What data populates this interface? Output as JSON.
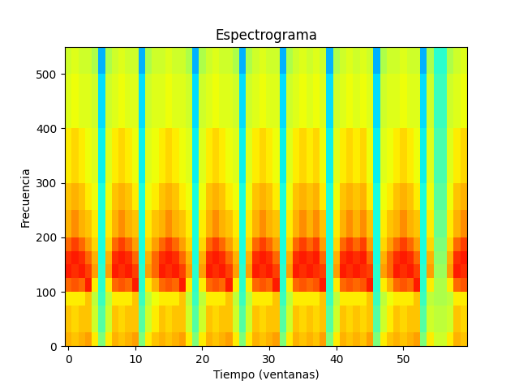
{
  "chart_data": {
    "type": "heatmap",
    "title": "Espectrograma",
    "x_label": "Tiempo (ventanas)",
    "y_label": "Frecuencia",
    "color": "jet",
    "clim": [
      0,
      100
    ],
    "xlim": [
      -0.5,
      59.5
    ],
    "ylim": [
      0,
      550
    ],
    "xticks": [
      0,
      10,
      20,
      30,
      40,
      50
    ],
    "yticks": [
      0,
      100,
      200,
      300,
      400,
      500
    ],
    "x_edges": [
      -0.5,
      0.5,
      1.5,
      2.5,
      3.5,
      4.5,
      5.5,
      6.5,
      7.5,
      8.5,
      9.5,
      10.5,
      11.5,
      12.5,
      13.5,
      14.5,
      15.5,
      16.5,
      17.5,
      18.5,
      19.5,
      20.5,
      21.5,
      22.5,
      23.5,
      24.5,
      25.5,
      26.5,
      27.5,
      28.5,
      29.5,
      30.5,
      31.5,
      32.5,
      33.5,
      34.5,
      35.5,
      36.5,
      37.5,
      38.5,
      39.5,
      40.5,
      41.5,
      42.5,
      43.5,
      44.5,
      45.5,
      46.5,
      47.5,
      48.5,
      49.5,
      50.5,
      51.5,
      52.5,
      53.5,
      54.5,
      55.5,
      56.5,
      57.5,
      58.5,
      59.5
    ],
    "y_edges": [
      0,
      25,
      75,
      100,
      125,
      150,
      175,
      200,
      250,
      300,
      400,
      500,
      550
    ],
    "cells_by_column": [
      [
        72,
        70,
        66,
        80,
        88,
        86,
        80,
        72,
        70,
        66,
        62,
        60
      ],
      [
        70,
        68,
        66,
        82,
        86,
        88,
        84,
        76,
        72,
        68,
        64,
        62
      ],
      [
        72,
        70,
        66,
        80,
        88,
        86,
        80,
        72,
        70,
        66,
        62,
        60
      ],
      [
        74,
        70,
        70,
        88,
        84,
        80,
        74,
        70,
        66,
        64,
        62,
        60
      ],
      [
        66,
        60,
        58,
        66,
        74,
        72,
        68,
        66,
        64,
        62,
        60,
        56
      ],
      [
        50,
        45,
        42,
        40,
        40,
        38,
        38,
        38,
        38,
        36,
        34,
        30
      ],
      [
        66,
        60,
        58,
        66,
        74,
        72,
        68,
        66,
        64,
        62,
        60,
        56
      ],
      [
        72,
        70,
        66,
        80,
        88,
        86,
        80,
        72,
        70,
        66,
        62,
        60
      ],
      [
        70,
        68,
        66,
        82,
        86,
        88,
        84,
        76,
        72,
        68,
        64,
        62
      ],
      [
        72,
        70,
        66,
        80,
        88,
        86,
        80,
        72,
        70,
        66,
        62,
        60
      ],
      [
        74,
        70,
        70,
        88,
        84,
        80,
        74,
        70,
        66,
        64,
        62,
        60
      ],
      [
        50,
        45,
        42,
        40,
        40,
        38,
        38,
        38,
        38,
        36,
        34,
        30
      ],
      [
        66,
        60,
        58,
        66,
        74,
        72,
        68,
        66,
        64,
        62,
        60,
        56
      ],
      [
        70,
        66,
        64,
        72,
        80,
        80,
        74,
        70,
        66,
        64,
        62,
        60
      ],
      [
        72,
        70,
        66,
        80,
        88,
        86,
        80,
        72,
        70,
        66,
        62,
        60
      ],
      [
        70,
        68,
        66,
        82,
        86,
        88,
        84,
        76,
        72,
        68,
        64,
        62
      ],
      [
        72,
        70,
        66,
        80,
        88,
        86,
        80,
        72,
        70,
        66,
        62,
        60
      ],
      [
        74,
        70,
        70,
        88,
        84,
        80,
        74,
        70,
        66,
        64,
        62,
        60
      ],
      [
        66,
        60,
        58,
        66,
        74,
        72,
        68,
        66,
        64,
        62,
        60,
        56
      ],
      [
        50,
        45,
        42,
        40,
        40,
        38,
        38,
        38,
        38,
        36,
        34,
        30
      ],
      [
        66,
        60,
        58,
        66,
        74,
        72,
        68,
        66,
        64,
        62,
        60,
        56
      ],
      [
        72,
        70,
        66,
        80,
        88,
        86,
        80,
        72,
        70,
        66,
        62,
        60
      ],
      [
        70,
        68,
        66,
        82,
        86,
        88,
        84,
        76,
        72,
        68,
        64,
        62
      ],
      [
        72,
        70,
        66,
        80,
        88,
        86,
        80,
        72,
        70,
        66,
        62,
        60
      ],
      [
        74,
        70,
        70,
        88,
        84,
        80,
        74,
        70,
        66,
        64,
        62,
        60
      ],
      [
        66,
        60,
        58,
        66,
        74,
        72,
        68,
        66,
        64,
        62,
        60,
        56
      ],
      [
        50,
        45,
        42,
        40,
        40,
        38,
        38,
        38,
        38,
        36,
        34,
        30
      ],
      [
        66,
        60,
        58,
        66,
        74,
        72,
        68,
        66,
        64,
        62,
        60,
        56
      ],
      [
        72,
        70,
        66,
        80,
        88,
        86,
        80,
        72,
        70,
        66,
        62,
        60
      ],
      [
        70,
        68,
        66,
        82,
        86,
        88,
        84,
        76,
        72,
        68,
        64,
        62
      ],
      [
        72,
        70,
        66,
        80,
        88,
        86,
        80,
        72,
        70,
        66,
        62,
        60
      ],
      [
        74,
        70,
        70,
        88,
        84,
        80,
        74,
        70,
        66,
        64,
        62,
        60
      ],
      [
        50,
        45,
        42,
        40,
        40,
        38,
        38,
        38,
        38,
        36,
        34,
        30
      ],
      [
        66,
        60,
        58,
        66,
        74,
        72,
        68,
        66,
        64,
        62,
        60,
        56
      ],
      [
        72,
        70,
        66,
        80,
        88,
        86,
        80,
        72,
        70,
        66,
        62,
        60
      ],
      [
        70,
        68,
        66,
        82,
        86,
        88,
        84,
        76,
        72,
        68,
        64,
        62
      ],
      [
        72,
        70,
        66,
        80,
        88,
        86,
        80,
        72,
        70,
        66,
        62,
        60
      ],
      [
        70,
        68,
        66,
        82,
        86,
        88,
        84,
        76,
        72,
        68,
        64,
        62
      ],
      [
        74,
        70,
        70,
        88,
        84,
        80,
        74,
        70,
        66,
        64,
        62,
        60
      ],
      [
        50,
        45,
        42,
        40,
        40,
        38,
        38,
        38,
        38,
        36,
        34,
        30
      ],
      [
        66,
        60,
        58,
        66,
        74,
        72,
        68,
        66,
        64,
        62,
        60,
        56
      ],
      [
        72,
        70,
        66,
        80,
        88,
        86,
        80,
        72,
        70,
        66,
        62,
        60
      ],
      [
        70,
        68,
        66,
        82,
        86,
        88,
        84,
        76,
        72,
        68,
        64,
        62
      ],
      [
        72,
        70,
        66,
        80,
        88,
        86,
        80,
        72,
        70,
        66,
        62,
        60
      ],
      [
        70,
        68,
        66,
        82,
        86,
        88,
        84,
        76,
        72,
        68,
        64,
        62
      ],
      [
        74,
        70,
        70,
        88,
        84,
        80,
        74,
        70,
        66,
        64,
        62,
        60
      ],
      [
        50,
        45,
        42,
        40,
        40,
        38,
        38,
        38,
        38,
        36,
        34,
        30
      ],
      [
        66,
        60,
        58,
        66,
        74,
        72,
        68,
        66,
        64,
        62,
        60,
        56
      ],
      [
        70,
        66,
        64,
        72,
        80,
        80,
        74,
        70,
        66,
        64,
        62,
        60
      ],
      [
        72,
        70,
        66,
        80,
        88,
        86,
        80,
        72,
        70,
        66,
        62,
        60
      ],
      [
        70,
        68,
        66,
        82,
        86,
        88,
        84,
        76,
        72,
        68,
        64,
        62
      ],
      [
        72,
        70,
        66,
        80,
        88,
        86,
        80,
        72,
        70,
        66,
        62,
        60
      ],
      [
        74,
        70,
        70,
        88,
        84,
        80,
        74,
        70,
        66,
        64,
        62,
        60
      ],
      [
        50,
        45,
        42,
        40,
        40,
        38,
        38,
        38,
        38,
        36,
        34,
        30
      ],
      [
        66,
        60,
        58,
        66,
        74,
        72,
        68,
        66,
        64,
        62,
        60,
        56
      ],
      [
        60,
        58,
        56,
        56,
        54,
        52,
        50,
        48,
        46,
        44,
        42,
        40
      ],
      [
        60,
        58,
        56,
        56,
        54,
        52,
        50,
        48,
        46,
        44,
        42,
        40
      ],
      [
        66,
        60,
        58,
        66,
        74,
        72,
        68,
        66,
        64,
        62,
        60,
        56
      ],
      [
        72,
        70,
        66,
        80,
        88,
        86,
        80,
        72,
        70,
        66,
        62,
        60
      ],
      [
        70,
        68,
        66,
        82,
        86,
        88,
        84,
        76,
        72,
        68,
        64,
        62
      ]
    ]
  }
}
